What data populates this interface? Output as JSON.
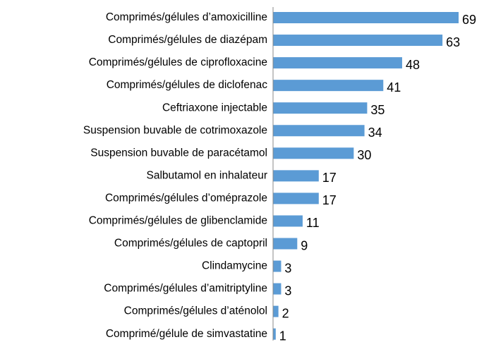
{
  "chart_data": {
    "type": "hbar",
    "categories": [
      "Comprimés/gélules d’amoxicilline",
      "Comprimés/gélules de diazépam",
      "Comprimés/gélules de ciprofloxacine",
      "Comprimés/gélules de diclofenac",
      "Ceftriaxone injectable",
      "Suspension buvable de cotrimoxazole",
      "Suspension buvable de paracétamol",
      "Salbutamol en inhalateur",
      "Comprimés/gélules d’oméprazole",
      "Comprimés/gélules de glibenclamide",
      "Comprimés/gélules de captopril",
      "Clindamycine",
      "Comprimés/gélules d’amitriptyline",
      "Comprimés/gélules d’aténolol",
      "Comprimé/gélule de simvastatine"
    ],
    "values": [
      69,
      63,
      48,
      41,
      35,
      34,
      30,
      17,
      17,
      11,
      9,
      3,
      3,
      2,
      1
    ],
    "color": "#5b9bd5"
  }
}
